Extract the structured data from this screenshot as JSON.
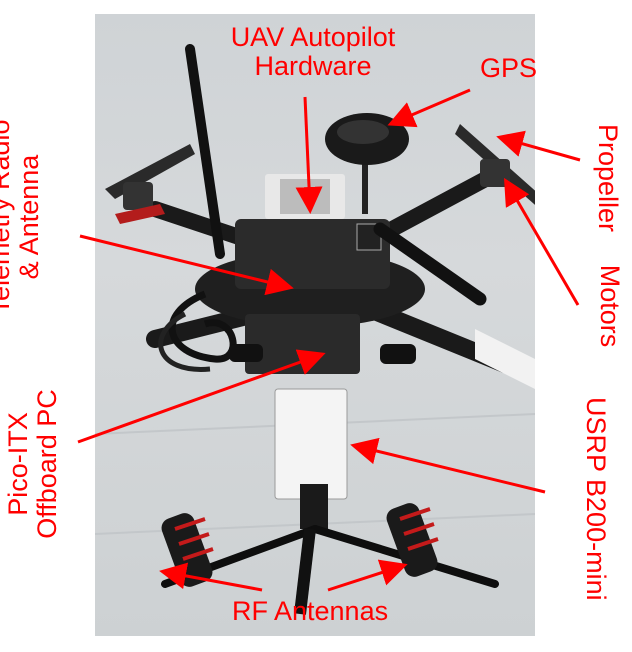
{
  "image": {
    "subject": "quadcopter-uav-with-sdr-payload"
  },
  "colors": {
    "annotation": "#ff0000",
    "background": "#ffffff"
  },
  "labels": {
    "autopilot_line1": "UAV Autopilot",
    "autopilot_line2": "Hardware",
    "gps": "GPS",
    "propeller": "Propeller",
    "motors": "Motors",
    "telemetry_line1": "Telemetry Radio",
    "telemetry_line2": "& Antenna",
    "pc_line1": "Pico-ITX",
    "pc_line2": "Offboard PC",
    "usrp": "USRP B200-mini",
    "rf": "RF Antennas"
  }
}
